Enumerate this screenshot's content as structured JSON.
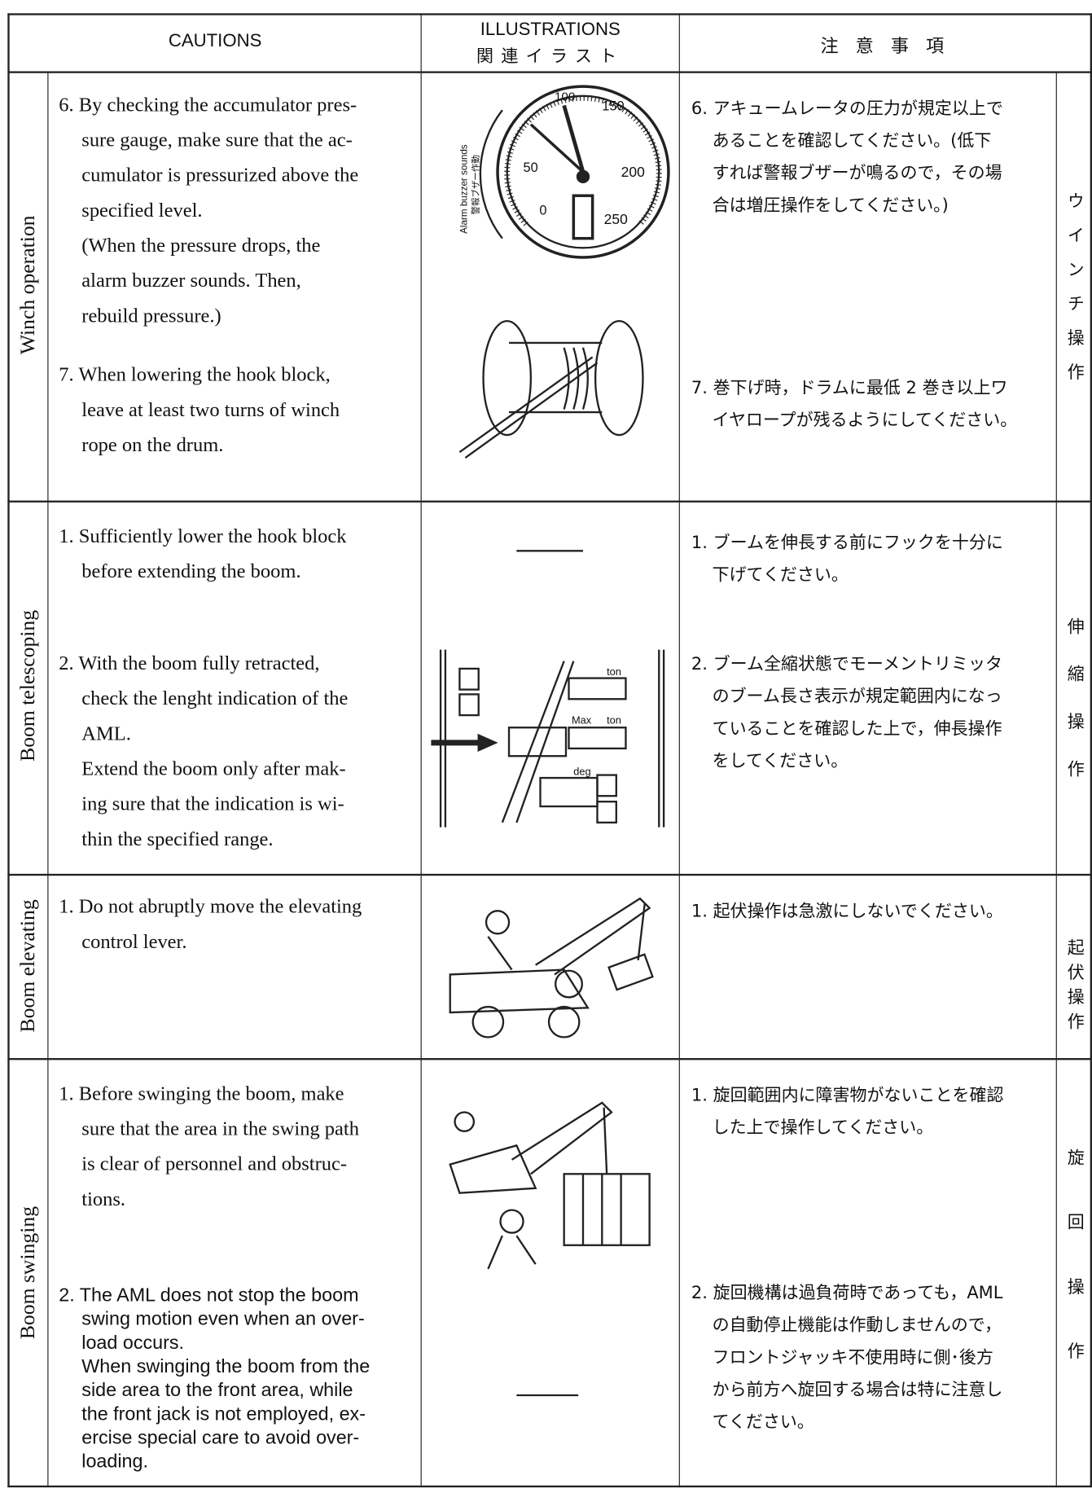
{
  "header": {
    "cautions": "CAUTIONS",
    "illustrations": "ILLUSTRATIONS",
    "illustrations_jp": "関連イラスト",
    "japanese": "注 意 事 項"
  },
  "sections": [
    {
      "label": "Winch operation",
      "label_jp": "ウインチ操作",
      "items": [
        {
          "en": "6. By checking the accumulator pres-\nsure gauge, make sure that the ac-\ncumulator is pressurized above the\nspecified level.\n(When the pressure drops, the\nalarm buzzer sounds. Then,\nrebuild pressure.)",
          "jp": "6. アキュームレータの圧力が規定以上で\nあることを確認してください。(低下\nすれば警報ブザーが鳴るので，その場\n合は増圧操作をしてください。)"
        },
        {
          "en": "7. When lowering the hook block,\nleave at least two turns of winch\nrope on the drum.",
          "jp": "7. 巻下げ時，ドラムに最低 2 巻き以上ワ\nイヤロープが残るようにしてください。"
        }
      ]
    },
    {
      "label": "Boom telescoping",
      "label_jp": "伸縮操作",
      "items": [
        {
          "en": "1. Sufficiently lower the hook block\nbefore extending the boom.",
          "jp": "1. ブームを伸長する前にフックを十分に\n下げてください。"
        },
        {
          "en": "2. With the boom fully retracted,\ncheck the lenght indication of the\nAML.\nExtend the boom only after mak-\ning sure that the indication is wi-\nthin the specified range.",
          "jp": "2. ブーム全縮状態でモーメントリミッタ\nのブーム長さ表示が規定範囲内になっ\nていることを確認した上で，伸長操作\nをしてください。"
        }
      ]
    },
    {
      "label": "Boom elevating",
      "label_jp": "起伏操作",
      "items": [
        {
          "en": "1. Do not abruptly move the elevating\ncontrol lever.",
          "jp": "1. 起伏操作は急激にしないでください。"
        }
      ]
    },
    {
      "label": "Boom swinging",
      "label_jp": "旋回操作",
      "items": [
        {
          "en": "1. Before swinging the boom, make\nsure that the area in the swing path\nis clear of personnel and obstruc-\ntions.",
          "jp": "1. 旋回範囲内に障害物がないことを確認\nした上で操作してください。"
        },
        {
          "en": "2. The AML does not stop the boom\nswing motion even when an over-\nload occurs.\nWhen swinging the boom from the\nside area to the front area, while\nthe front jack is not employed, ex-\nercise special care to avoid over-\nloading.",
          "jp": "2. 旋回機構は過負荷時であっても，AML\nの自動停止機能は作動しませんので，\nフロントジャッキ不使用時に側･後方\nから前方へ旋回する場合は特に注意し\nてください。"
        }
      ]
    }
  ],
  "gauge": {
    "caption": "Alarm buzzer sounds",
    "caption_jp": "警報ブザー作動",
    "scale": [
      "0",
      "50",
      "100",
      "150",
      "200",
      "250"
    ]
  },
  "panel": {
    "ton": "ton",
    "max": "Max",
    "max_ton": "ton",
    "deg": "deg"
  }
}
